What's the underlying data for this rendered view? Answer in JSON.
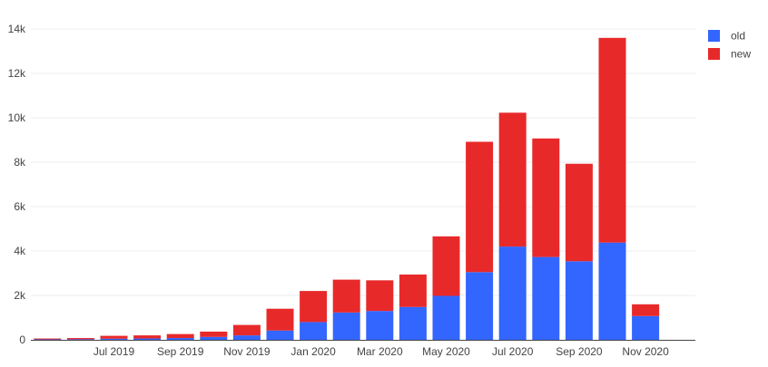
{
  "chart_data": {
    "type": "bar",
    "stacked": true,
    "categories": [
      "2019-05",
      "2019-06",
      "2019-07",
      "2019-08",
      "2019-09",
      "2019-10",
      "2019-11",
      "2019-12",
      "2020-01",
      "2020-02",
      "2020-03",
      "2020-04",
      "2020-05",
      "2020-06",
      "2020-07",
      "2020-08",
      "2020-09",
      "2020-10",
      "2020-11",
      "2020-12"
    ],
    "x_tick_labels": [
      "Jul 2019",
      "Sep 2019",
      "Nov 2019",
      "Jan 2020",
      "Mar 2020",
      "May 2020",
      "Jul 2020",
      "Sep 2020",
      "Nov 2020"
    ],
    "x_tick_months": [
      "2019-07",
      "2019-09",
      "2019-11",
      "2020-01",
      "2020-03",
      "2020-05",
      "2020-07",
      "2020-09",
      "2020-11"
    ],
    "series": [
      {
        "name": "old",
        "color": "#3366ff",
        "values": [
          20,
          25,
          50,
          60,
          80,
          130,
          200,
          420,
          800,
          1230,
          1300,
          1480,
          1980,
          3050,
          4200,
          3730,
          3540,
          4380,
          1070,
          0
        ]
      },
      {
        "name": "new",
        "color": "#e8292a",
        "values": [
          40,
          55,
          130,
          140,
          180,
          240,
          470,
          980,
          1400,
          1480,
          1380,
          1460,
          2680,
          5870,
          6030,
          5340,
          4390,
          9220,
          530,
          0
        ]
      }
    ],
    "y_ticks": [
      0,
      2000,
      4000,
      6000,
      8000,
      10000,
      12000,
      14000
    ],
    "y_tick_labels": [
      "0",
      "2k",
      "4k",
      "6k",
      "8k",
      "10k",
      "12k",
      "14k"
    ],
    "ylim": [
      0,
      14000
    ],
    "grid": true,
    "legend_position": "top-right"
  }
}
